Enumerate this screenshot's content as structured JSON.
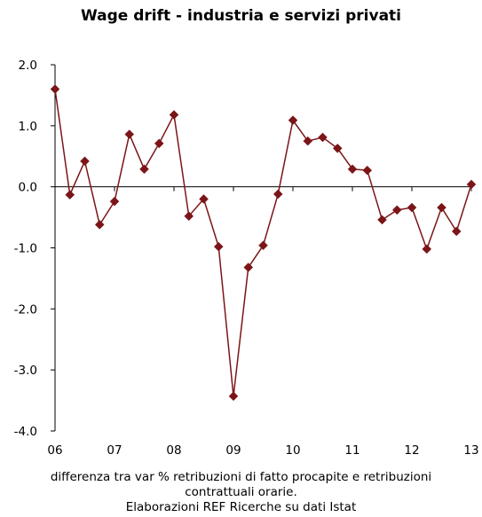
{
  "chart_data": {
    "type": "line",
    "title": "Wage drift - industria e servizi privati",
    "xlabel": "",
    "ylabel": "",
    "ylim": [
      -4.0,
      2.0
    ],
    "yticks": [
      2.0,
      1.0,
      0.0,
      -1.0,
      -2.0,
      -3.0,
      -4.0
    ],
    "ytick_labels": [
      "2.0",
      "1.0",
      "0.0",
      "-1.0",
      "-2.0",
      "-3.0",
      "-4.0"
    ],
    "xtick_labels": [
      "06",
      "07",
      "08",
      "09",
      "10",
      "11",
      "12",
      "13"
    ],
    "x_start": 2006,
    "x_step_per_point": 0.25,
    "grid": false,
    "legend": "none",
    "series": [
      {
        "color": "#7b1518",
        "marker": "diamond",
        "values": [
          1.6,
          -0.13,
          0.42,
          -0.62,
          -0.24,
          0.86,
          0.29,
          0.71,
          1.18,
          -0.48,
          -0.2,
          -0.98,
          -3.43,
          -1.32,
          -0.96,
          -0.12,
          1.09,
          0.75,
          0.81,
          0.63,
          0.29,
          0.27,
          -0.54,
          -0.38,
          -0.34,
          -1.02,
          -0.34,
          -0.73,
          0.04
        ]
      }
    ]
  },
  "captions": {
    "line1": "differenza tra var % retribuzioni di fatto procapite e retribuzioni",
    "line2": "contrattuali orarie.",
    "line3": "Elaborazioni REF Ricerche su dati Istat"
  }
}
